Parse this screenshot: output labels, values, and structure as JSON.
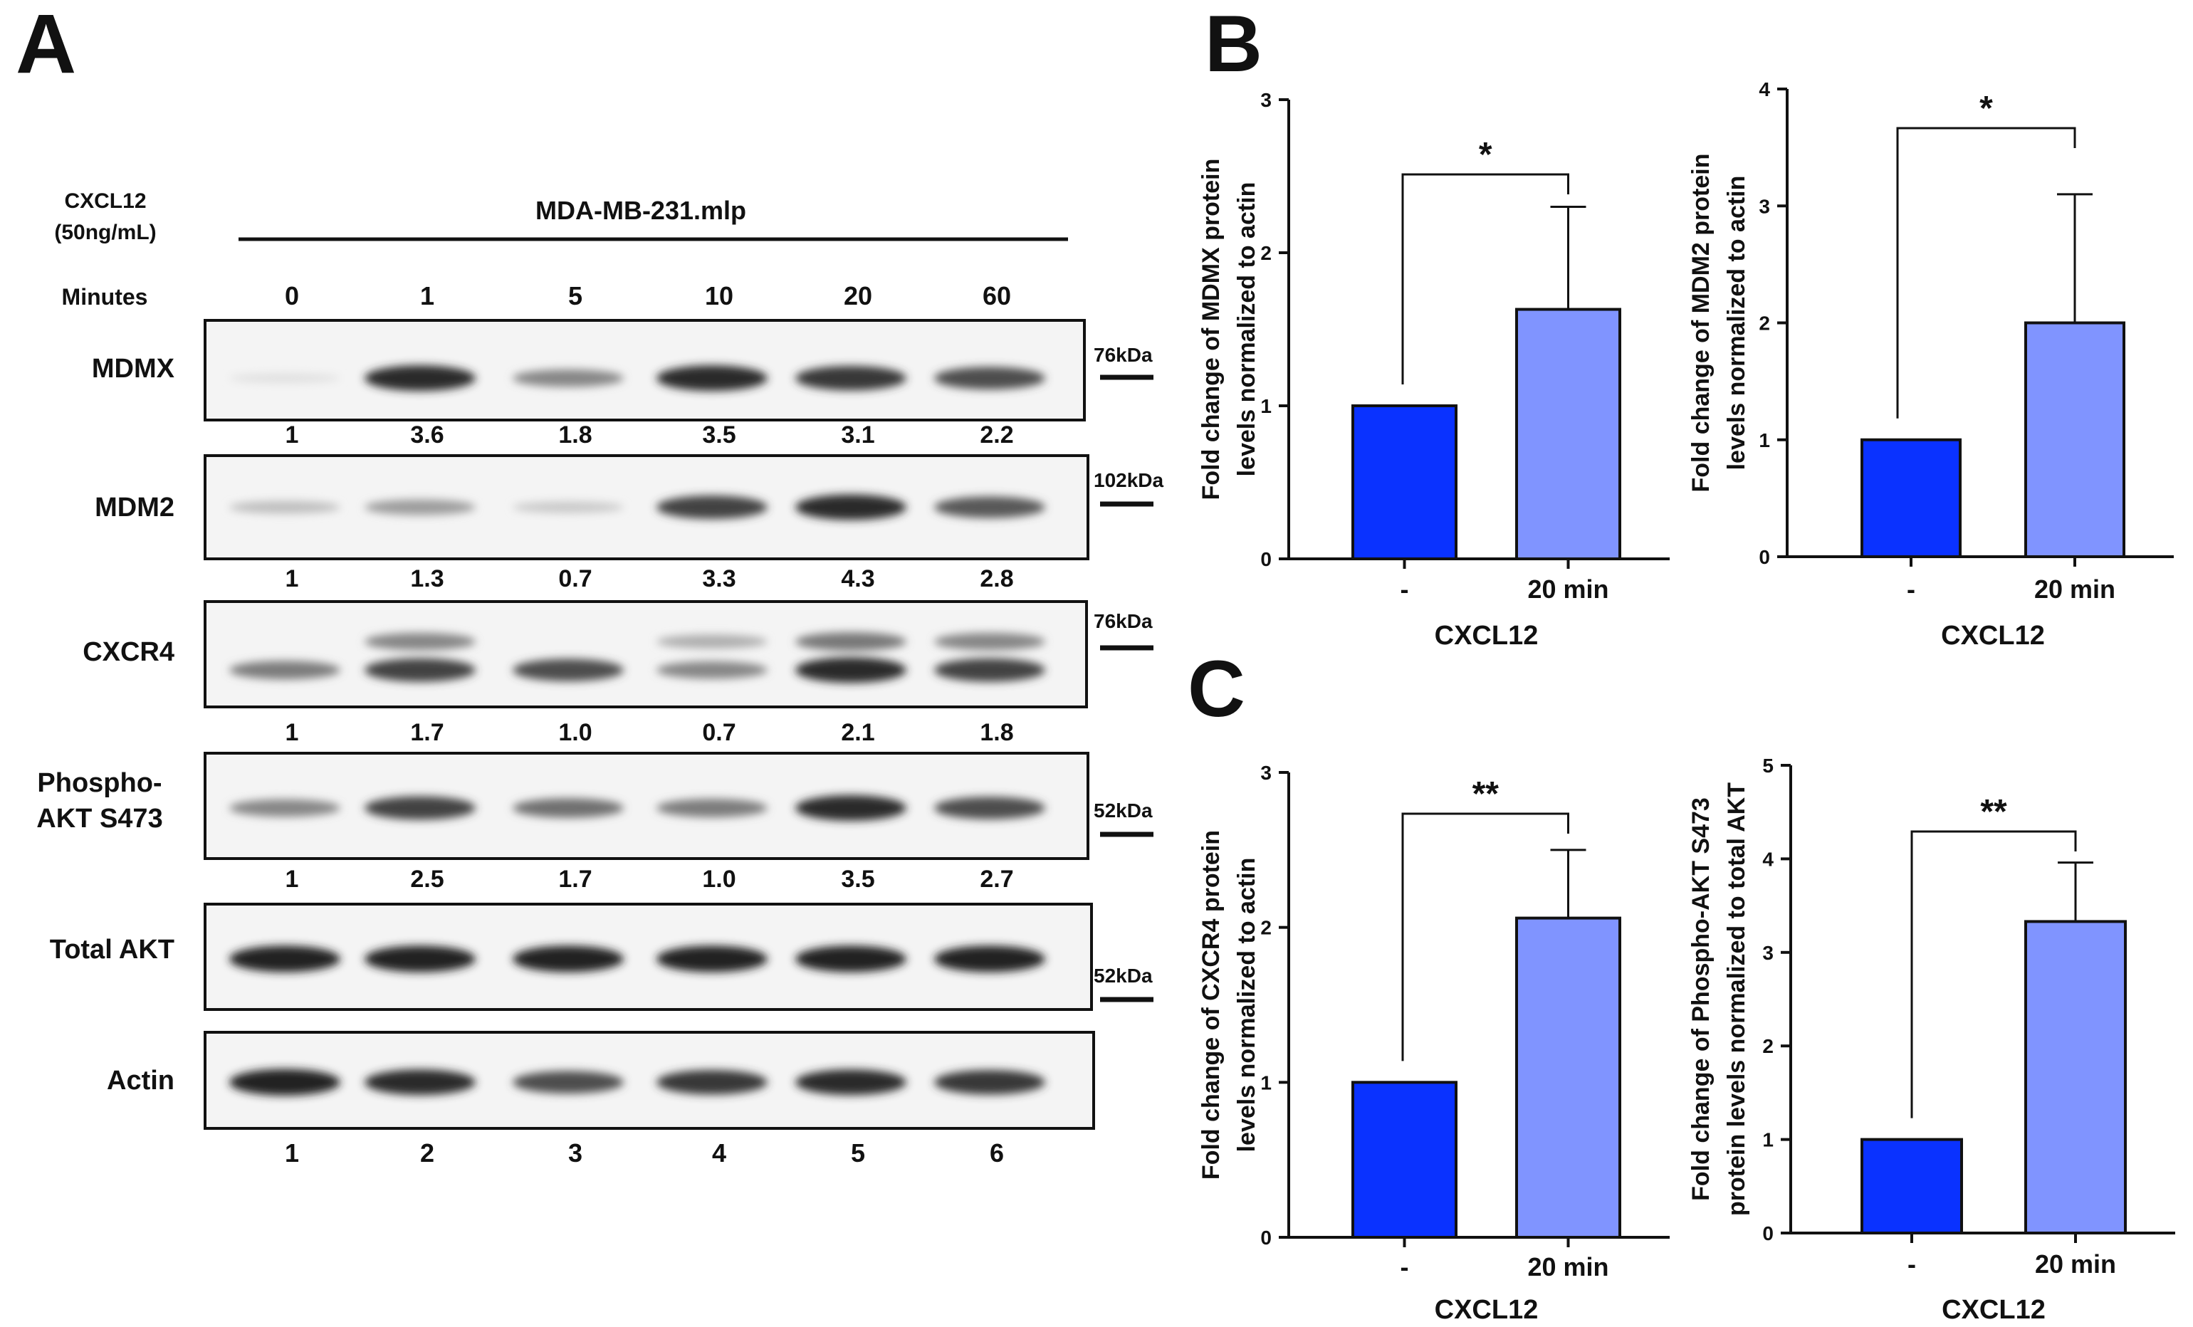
{
  "panel_labels": {
    "a": "A",
    "b": "B",
    "c": "C"
  },
  "colors": {
    "control": "#0a32ff",
    "treated": "#8094ff",
    "ink": "#111111"
  },
  "western_blot": {
    "treatment_label_line1": "CXCL12",
    "treatment_label_line2": "(50ng/mL)",
    "cell_line": "MDA-MB-231.mlp",
    "minutes_label": "Minutes",
    "minutes": [
      "0",
      "1",
      "5",
      "10",
      "20",
      "60"
    ],
    "lanes": [
      "1",
      "2",
      "3",
      "4",
      "5",
      "6"
    ],
    "blots": [
      {
        "name": "MDMX",
        "kda": "76kDa",
        "quant": [
          "1",
          "3.6",
          "1.8",
          "3.5",
          "3.1",
          "2.2"
        ],
        "intensity": [
          0.05,
          0.85,
          0.45,
          0.85,
          0.8,
          0.7
        ]
      },
      {
        "name": "MDM2",
        "kda": "102kDa",
        "quant": [
          "1",
          "1.3",
          "0.7",
          "3.3",
          "4.3",
          "2.8"
        ],
        "intensity": [
          0.2,
          0.35,
          0.15,
          0.75,
          0.85,
          0.65
        ]
      },
      {
        "name": "CXCR4",
        "kda": "76kDa",
        "quant": [
          "1",
          "1.7",
          "1.0",
          "0.7",
          "2.1",
          "1.8"
        ],
        "intensity": [
          0.5,
          0.75,
          0.7,
          0.45,
          0.85,
          0.75
        ]
      },
      {
        "name_line1": "Phospho-",
        "name_line2": "AKT S473",
        "kda": "52kDa",
        "quant": [
          "1",
          "2.5",
          "1.7",
          "1.0",
          "3.5",
          "2.7"
        ],
        "intensity": [
          0.45,
          0.75,
          0.55,
          0.5,
          0.85,
          0.7
        ]
      },
      {
        "name": "Total AKT",
        "kda": "52kDa",
        "intensity": [
          0.9,
          0.9,
          0.9,
          0.9,
          0.9,
          0.9
        ]
      },
      {
        "name": "Actin",
        "intensity": [
          0.9,
          0.85,
          0.7,
          0.8,
          0.85,
          0.8
        ]
      }
    ]
  },
  "chart_data": [
    {
      "type": "bar",
      "panel": "B",
      "categories": [
        "-",
        "20 min"
      ],
      "values": [
        1.0,
        1.63
      ],
      "errors": [
        0,
        0.67
      ],
      "ylim": [
        0,
        3
      ],
      "yticks": [
        "0",
        "1",
        "2",
        "3"
      ],
      "xlabel": "CXCL12",
      "ylabel_line1": "Fold change of MDMX protein",
      "ylabel_line2": "levels normalized to actin",
      "significance": "*"
    },
    {
      "type": "bar",
      "panel": "B",
      "categories": [
        "-",
        "20 min"
      ],
      "values": [
        1.0,
        2.0
      ],
      "errors": [
        0,
        1.1
      ],
      "ylim": [
        0,
        4
      ],
      "yticks": [
        "0",
        "1",
        "2",
        "3",
        "4"
      ],
      "xlabel": "CXCL12",
      "ylabel_line1": "Fold change of MDM2 protein",
      "ylabel_line2": "levels normalized to actin",
      "significance": "*"
    },
    {
      "type": "bar",
      "panel": "C",
      "categories": [
        "-",
        "20 min"
      ],
      "values": [
        1.0,
        2.06
      ],
      "errors": [
        0,
        0.44
      ],
      "ylim": [
        0,
        3
      ],
      "yticks": [
        "0",
        "1",
        "2",
        "3"
      ],
      "xlabel": "CXCL12",
      "ylabel_line1": "Fold change of CXCR4 protein",
      "ylabel_line2": "levels normalized to actin",
      "significance": "**"
    },
    {
      "type": "bar",
      "panel": "C",
      "categories": [
        "-",
        "20 min"
      ],
      "values": [
        1.0,
        3.33
      ],
      "errors": [
        0,
        0.63
      ],
      "ylim": [
        0,
        5
      ],
      "yticks": [
        "0",
        "1",
        "2",
        "3",
        "4",
        "5"
      ],
      "xlabel": "CXCL12",
      "ylabel_line1": "Fold change of Phospho-AKT S473",
      "ylabel_line2": "protein levels normalized to total AKT",
      "significance": "**"
    }
  ]
}
